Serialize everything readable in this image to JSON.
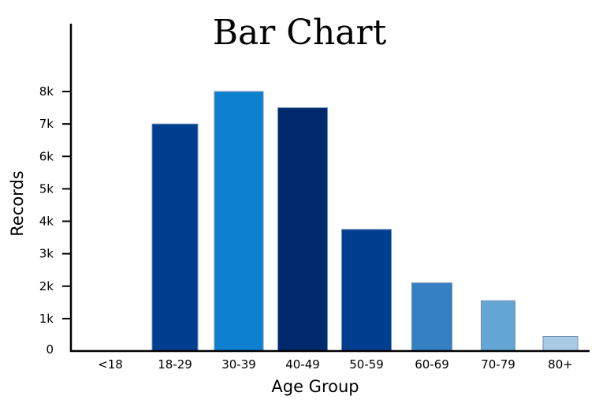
{
  "chart_data": {
    "type": "bar",
    "title": "Bar Chart",
    "xlabel": "Age Group",
    "ylabel": "Records",
    "categories": [
      "<18",
      "18-29",
      "30-39",
      "40-49",
      "50-59",
      "60-69",
      "70-79",
      "80+"
    ],
    "values": [
      0,
      7000,
      8000,
      7500,
      3750,
      2100,
      1550,
      450
    ],
    "colors": [
      "#003f8f",
      "#003f8f",
      "#0e80d0",
      "#002a6b",
      "#003f8f",
      "#3580c3",
      "#64a6d6",
      "#a9cae6"
    ],
    "y_ticks": [
      {
        "value": 0,
        "label": "0"
      },
      {
        "value": 1000,
        "label": "1k"
      },
      {
        "value": 2000,
        "label": "2k"
      },
      {
        "value": 3000,
        "label": "3k"
      },
      {
        "value": 4000,
        "label": "4k"
      },
      {
        "value": 5000,
        "label": "5k"
      },
      {
        "value": 6000,
        "label": "6k"
      },
      {
        "value": 7000,
        "label": "7k"
      },
      {
        "value": 8000,
        "label": "8k"
      }
    ],
    "ylim": [
      0,
      8000
    ],
    "grid": false,
    "legend": "none"
  }
}
